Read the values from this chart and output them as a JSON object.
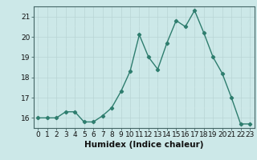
{
  "x": [
    0,
    1,
    2,
    3,
    4,
    5,
    6,
    7,
    8,
    9,
    10,
    11,
    12,
    13,
    14,
    15,
    16,
    17,
    18,
    19,
    20,
    21,
    22,
    23
  ],
  "y": [
    16.0,
    16.0,
    16.0,
    16.3,
    16.3,
    15.8,
    15.8,
    16.1,
    16.5,
    17.3,
    18.3,
    20.1,
    19.0,
    18.4,
    19.7,
    20.8,
    20.5,
    21.3,
    20.2,
    19.0,
    18.2,
    17.0,
    15.7,
    15.7
  ],
  "xlabel": "Humidex (Indice chaleur)",
  "ylim": [
    15.5,
    21.5
  ],
  "xlim": [
    -0.5,
    23.5
  ],
  "yticks": [
    16,
    17,
    18,
    19,
    20,
    21
  ],
  "xticks": [
    0,
    1,
    2,
    3,
    4,
    5,
    6,
    7,
    8,
    9,
    10,
    11,
    12,
    13,
    14,
    15,
    16,
    17,
    18,
    19,
    20,
    21,
    22,
    23
  ],
  "line_color": "#2e7d6e",
  "marker": "D",
  "marker_size": 2.2,
  "bg_color": "#cce8e8",
  "grid_major_color": "#b8d4d4",
  "grid_minor_color": "#d4e8e8",
  "line_width": 1.0,
  "tick_label_fontsize": 6.5,
  "xlabel_fontsize": 7.5
}
